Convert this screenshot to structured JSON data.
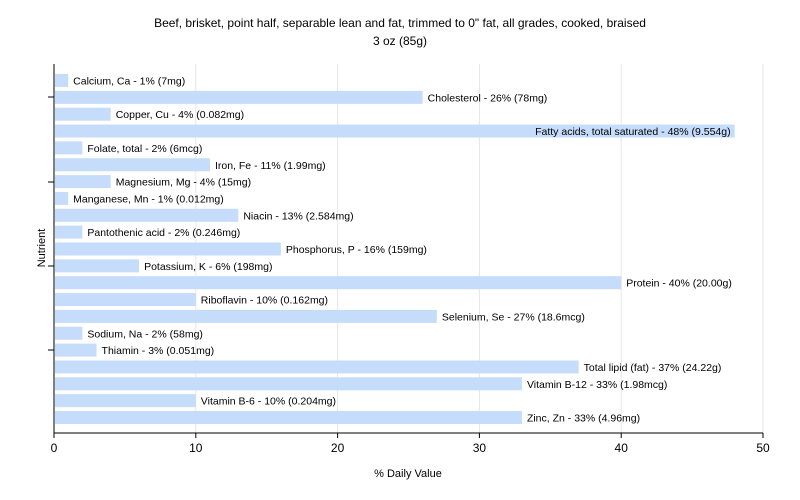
{
  "chart_data": {
    "type": "bar",
    "orientation": "horizontal",
    "title": "Beef, brisket, point half, separable lean and fat, trimmed to 0\" fat, all grades, cooked, braised",
    "subtitle": "3 oz (85g)",
    "xlabel": "% Daily Value",
    "ylabel": "Nutrient",
    "xlim": [
      0,
      50
    ],
    "xticks": [
      "0",
      "10",
      "20",
      "30",
      "40",
      "50"
    ],
    "grid": true,
    "bar_color": "#c6dcfb",
    "categories": [
      "Calcium, Ca",
      "Cholesterol",
      "Copper, Cu",
      "Fatty acids, total saturated",
      "Folate, total",
      "Iron, Fe",
      "Magnesium, Mg",
      "Manganese, Mn",
      "Niacin",
      "Pantothenic acid",
      "Phosphorus, P",
      "Potassium, K",
      "Protein",
      "Riboflavin",
      "Selenium, Se",
      "Sodium, Na",
      "Thiamin",
      "Total lipid (fat)",
      "Vitamin B-12",
      "Vitamin B-6",
      "Zinc, Zn"
    ],
    "values": [
      1,
      26,
      4,
      48,
      2,
      11,
      4,
      1,
      13,
      2,
      16,
      6,
      40,
      10,
      27,
      2,
      3,
      37,
      33,
      10,
      33
    ],
    "labels": [
      "Calcium, Ca - 1% (7mg)",
      "Cholesterol - 26% (78mg)",
      "Copper, Cu - 4% (0.082mg)",
      "Fatty acids, total saturated - 48% (9.554g)",
      "Folate, total - 2% (6mcg)",
      "Iron, Fe - 11% (1.99mg)",
      "Magnesium, Mg - 4% (15mg)",
      "Manganese, Mn - 1% (0.012mg)",
      "Niacin - 13% (2.584mg)",
      "Pantothenic acid - 2% (0.246mg)",
      "Phosphorus, P - 16% (159mg)",
      "Potassium, K - 6% (198mg)",
      "Protein - 40% (20.00g)",
      "Riboflavin - 10% (0.162mg)",
      "Selenium, Se - 27% (18.6mcg)",
      "Sodium, Na - 2% (58mg)",
      "Thiamin - 3% (0.051mg)",
      "Total lipid (fat) - 37% (24.22g)",
      "Vitamin B-12 - 33% (1.98mcg)",
      "Vitamin B-6 - 10% (0.204mg)",
      "Zinc, Zn - 33% (4.96mg)"
    ]
  }
}
